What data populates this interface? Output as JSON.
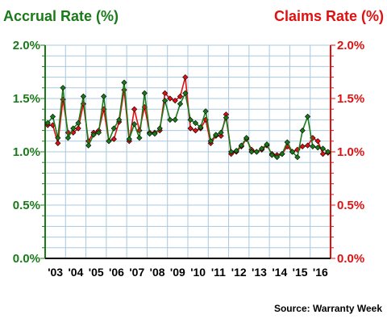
{
  "chart_data": {
    "type": "line",
    "left_axis_title": "Accrual Rate (%)",
    "right_axis_title": "Claims Rate (%)",
    "source": "Source: Warranty Week",
    "ylim": [
      0,
      2.0
    ],
    "grid": true,
    "left_ticks": [
      {
        "value": 0.0,
        "label": "0.0%"
      },
      {
        "value": 0.5,
        "label": "0.5%"
      },
      {
        "value": 1.0,
        "label": "1.0%"
      },
      {
        "value": 1.5,
        "label": "1.5%"
      },
      {
        "value": 2.0,
        "label": "2.0%"
      }
    ],
    "right_ticks": [
      {
        "value": 0.0,
        "label": "0.0%"
      },
      {
        "value": 0.5,
        "label": "0.5%"
      },
      {
        "value": 1.0,
        "label": "1.0%"
      },
      {
        "value": 1.5,
        "label": "1.5%"
      },
      {
        "value": 2.0,
        "label": "2.0%"
      }
    ],
    "x_labels": [
      "'03",
      "'04",
      "'05",
      "'06",
      "'07",
      "'08",
      "'09",
      "'10",
      "'11",
      "'12",
      "'13",
      "'14",
      "'15",
      "'16"
    ],
    "colors": {
      "accrual": "#1a7a1a",
      "claims": "#e01010",
      "left_axis": "#1a7a1a",
      "right_axis": "#e01010",
      "grid": "#a8c8e0"
    },
    "series": [
      {
        "key": "accrual",
        "values": [
          1.27,
          1.33,
          1.13,
          1.6,
          1.13,
          1.22,
          1.27,
          1.52,
          1.06,
          1.16,
          1.18,
          1.52,
          1.1,
          1.22,
          1.3,
          1.65,
          1.12,
          1.26,
          1.13,
          1.55,
          1.17,
          1.17,
          1.22,
          1.48,
          1.3,
          1.3,
          1.45,
          1.55,
          1.3,
          1.27,
          1.23,
          1.38,
          1.1,
          1.16,
          1.18,
          1.32,
          1.0,
          1.01,
          1.06,
          1.13,
          1.0,
          1.0,
          1.03,
          1.07,
          0.97,
          0.95,
          0.98,
          1.09,
          1.0,
          0.95,
          1.2,
          1.33,
          1.05,
          1.04,
          1.03,
          1.0
        ]
      },
      {
        "key": "claims",
        "values": [
          1.25,
          1.25,
          1.08,
          1.49,
          1.18,
          1.18,
          1.22,
          1.45,
          1.1,
          1.18,
          1.2,
          1.4,
          1.1,
          1.12,
          1.28,
          1.58,
          1.1,
          1.4,
          1.2,
          1.42,
          1.18,
          1.18,
          1.2,
          1.55,
          1.5,
          1.48,
          1.52,
          1.7,
          1.22,
          1.2,
          1.22,
          1.3,
          1.08,
          1.15,
          1.15,
          1.35,
          0.98,
          1.0,
          1.05,
          1.12,
          1.02,
          1.0,
          1.02,
          1.06,
          0.98,
          0.97,
          0.98,
          1.05,
          1.0,
          1.02,
          1.05,
          1.06,
          1.13,
          1.1,
          0.98,
          0.99
        ]
      }
    ]
  }
}
